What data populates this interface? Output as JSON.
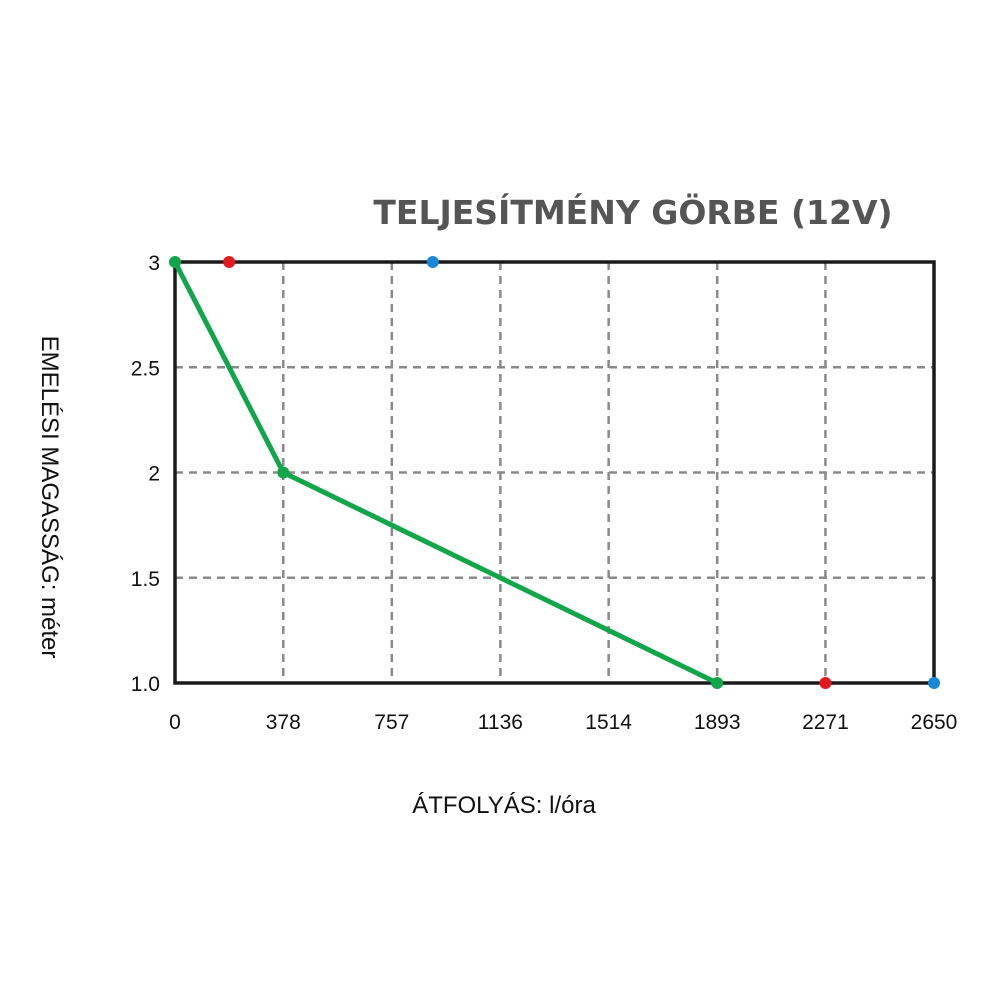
{
  "chart_data": {
    "type": "line",
    "title": "TELJESÍTMÉNY GÖRBE (12V)",
    "xlabel": "ÁTFOLYÁS: l/óra",
    "ylabel": "EMELÉSI MAGASSÁG: méter",
    "x_ticks": [
      "0",
      "378",
      "757",
      "1136",
      "1514",
      "1893",
      "2271",
      "2650"
    ],
    "y_ticks": [
      "1.0",
      "1.5",
      "2",
      "2.5",
      "3"
    ],
    "xlim": [
      0,
      2650
    ],
    "ylim": [
      1.0,
      3.0
    ],
    "grid": true,
    "series": [
      {
        "color": "#12a64a",
        "x": [
          0,
          378,
          1893
        ],
        "y": [
          3,
          2,
          1.0
        ]
      }
    ],
    "markers": [
      {
        "color": "#e3191f",
        "x": 189,
        "y": 3
      },
      {
        "color": "#1887d6",
        "x": 900,
        "y": 3
      },
      {
        "color": "#e3191f",
        "x": 2271,
        "y": 1.0
      },
      {
        "color": "#1887d6",
        "x": 2650,
        "y": 1.0
      }
    ]
  }
}
